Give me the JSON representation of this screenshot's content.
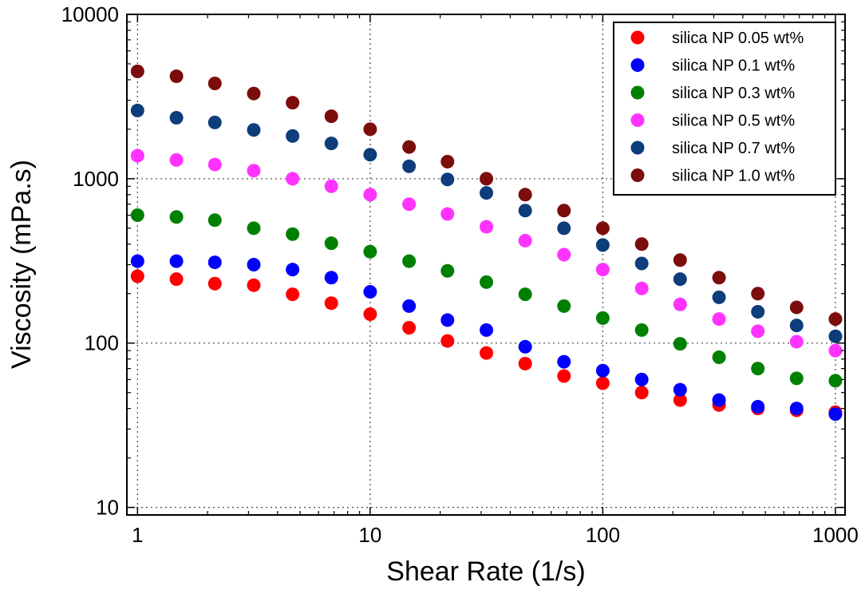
{
  "chart_data": {
    "type": "scatter",
    "xlabel": "Shear Rate (1/s)",
    "ylabel": "Viscosity (mPa.s)",
    "xscale": "log",
    "yscale": "log",
    "xlim": [
      0.9,
      1100
    ],
    "ylim": [
      9,
      10000
    ],
    "x_ticks": [
      1,
      10,
      100,
      1000
    ],
    "x_tick_labels": [
      "1",
      "10",
      "100",
      "1000"
    ],
    "y_ticks": [
      10,
      100,
      1000,
      10000
    ],
    "y_tick_labels": [
      "10",
      "100",
      "1000",
      "10000"
    ],
    "grid": true,
    "legend_position": "top-right",
    "x": [
      1,
      1.47,
      2.15,
      3.16,
      4.64,
      6.81,
      10,
      14.7,
      21.5,
      31.6,
      46.4,
      68.1,
      100,
      147,
      215,
      316,
      464,
      681,
      1000
    ],
    "series": [
      {
        "name": "silica NP 0.05 wt%",
        "color": "#ff0000",
        "values": [
          255,
          245,
          230,
          225,
          198,
          175,
          150,
          124,
          103,
          87,
          75,
          63,
          57,
          50,
          45,
          42,
          40,
          39,
          38
        ]
      },
      {
        "name": "silica NP 0.1 wt%",
        "color": "#0000ff",
        "values": [
          315,
          315,
          310,
          300,
          280,
          250,
          205,
          168,
          138,
          120,
          95,
          77,
          68,
          60,
          52,
          45,
          41,
          40,
          37
        ]
      },
      {
        "name": "silica NP 0.3 wt%",
        "color": "#008000",
        "values": [
          600,
          585,
          560,
          500,
          460,
          405,
          360,
          315,
          275,
          235,
          198,
          168,
          142,
          120,
          99,
          82,
          70,
          61,
          59
        ]
      },
      {
        "name": "silica NP 0.5 wt%",
        "color": "#ff33ff",
        "values": [
          1380,
          1300,
          1220,
          1120,
          1000,
          900,
          800,
          700,
          610,
          510,
          420,
          345,
          280,
          215,
          172,
          140,
          118,
          102,
          90
        ]
      },
      {
        "name": "silica NP 0.7 wt%",
        "color": "#0d3d7a",
        "values": [
          2600,
          2350,
          2200,
          1980,
          1820,
          1640,
          1400,
          1190,
          990,
          820,
          640,
          500,
          395,
          305,
          245,
          190,
          155,
          128,
          110
        ]
      },
      {
        "name": "silica NP 1.0 wt%",
        "color": "#7b0d0d",
        "values": [
          4500,
          4200,
          3800,
          3300,
          2900,
          2400,
          2000,
          1560,
          1270,
          1000,
          800,
          640,
          500,
          400,
          320,
          250,
          200,
          165,
          140
        ]
      }
    ]
  }
}
